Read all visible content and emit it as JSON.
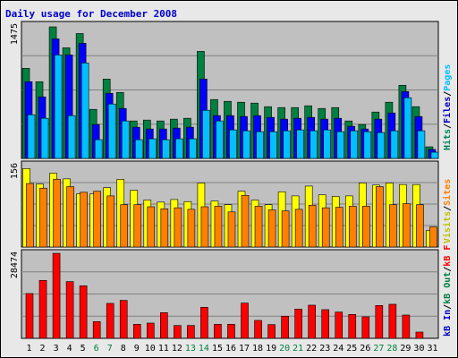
{
  "title": "Daily usage for December 2008",
  "colors": {
    "hits": "#008040",
    "files": "#0000ff",
    "pages": "#00c0ff",
    "visits": "#ffff00",
    "sites": "#ff8000",
    "kbin": "#0000ff",
    "kbout": "#008040",
    "kbf": "#ff0000",
    "background": "#c0c0c0",
    "weekend_label": "#008040",
    "weekday_label": "#000000"
  },
  "legends": {
    "top": [
      {
        "text": "Hits",
        "color": "#00805c"
      },
      {
        "text": "/",
        "color": "#000000"
      },
      {
        "text": "Files",
        "color": "#0000c0"
      },
      {
        "text": "/",
        "color": "#000000"
      },
      {
        "text": "Pages",
        "color": "#00c0ff"
      }
    ],
    "middle": [
      {
        "text": "Visits",
        "color": "#c0c000"
      },
      {
        "text": "/",
        "color": "#000000"
      },
      {
        "text": "Sites",
        "color": "#ff8000"
      }
    ],
    "bottom": [
      {
        "text": "kB In",
        "color": "#0000c0"
      },
      {
        "text": "/",
        "color": "#000000"
      },
      {
        "text": "kB Out",
        "color": "#008040"
      },
      {
        "text": "/",
        "color": "#000000"
      },
      {
        "text": "kB F",
        "color": "#ff0000"
      }
    ]
  },
  "chart_data": {
    "type": "bar",
    "title": "Daily usage for December 2008",
    "categories": [
      "1",
      "2",
      "3",
      "4",
      "5",
      "6",
      "7",
      "8",
      "9",
      "10",
      "11",
      "12",
      "13",
      "14",
      "15",
      "16",
      "17",
      "18",
      "19",
      "20",
      "21",
      "22",
      "23",
      "24",
      "25",
      "26",
      "27",
      "28",
      "29",
      "30",
      "31"
    ],
    "weekend_days": [
      6,
      7,
      13,
      14,
      20,
      21,
      27,
      28
    ],
    "panels": [
      {
        "name": "hits-files-pages",
        "ymax": 1475,
        "ymax_label": "1475",
        "series": [
          {
            "name": "Hits",
            "values": [
              1010,
              860,
              1475,
              1240,
              1400,
              550,
              890,
              740,
              420,
              430,
              420,
              440,
              450,
              1200,
              660,
              640,
              630,
              620,
              580,
              570,
              570,
              590,
              560,
              570,
              420,
              380,
              520,
              630,
              820,
              580,
              130
            ]
          },
          {
            "name": "Files",
            "values": [
              860,
              690,
              1340,
              1160,
              1290,
              380,
              730,
              560,
              350,
              330,
              330,
              340,
              350,
              890,
              480,
              480,
              470,
              480,
              460,
              440,
              450,
              460,
              440,
              450,
              360,
              330,
              440,
              510,
              750,
              470,
              100
            ]
          },
          {
            "name": "Pages",
            "values": [
              490,
              450,
              1160,
              480,
              1070,
              210,
              610,
              420,
              210,
              220,
              210,
              220,
              220,
              540,
              420,
              320,
              310,
              300,
              300,
              310,
              320,
              310,
              320,
              300,
              310,
              300,
              290,
              310,
              680,
              310,
              70
            ]
          }
        ]
      },
      {
        "name": "visits-sites",
        "ymax": 156,
        "ymax_label": "156",
        "series": [
          {
            "name": "Visits",
            "values": [
              152,
              122,
              143,
              132,
              103,
              103,
              115,
              131,
              110,
              91,
              87,
              92,
              88,
              124,
              89,
              82,
              108,
              91,
              82,
              107,
              99,
              118,
              101,
              98,
              99,
              124,
              120,
              124,
              121,
              121,
              32
            ]
          },
          {
            "name": "Sites",
            "values": [
              123,
              114,
              131,
              117,
              106,
              108,
              99,
              82,
              82,
              78,
              74,
              76,
              73,
              78,
              79,
              68,
              100,
              79,
              72,
              70,
              73,
              81,
              76,
              77,
              79,
              79,
              117,
              82,
              84,
              82,
              39
            ]
          }
        ]
      },
      {
        "name": "kb-in-out-f",
        "ymax": 28474,
        "ymax_label": "28474",
        "series": [
          {
            "name": "kB In",
            "values": [
              0,
              0,
              0,
              0,
              0,
              0,
              0,
              0,
              0,
              0,
              0,
              0,
              0,
              0,
              0,
              0,
              0,
              0,
              0,
              0,
              0,
              0,
              0,
              0,
              0,
              0,
              0,
              0,
              0,
              0,
              0
            ]
          },
          {
            "name": "kB Out",
            "values": [
              0,
              0,
              0,
              0,
              0,
              0,
              0,
              0,
              0,
              0,
              0,
              0,
              0,
              0,
              0,
              0,
              0,
              0,
              0,
              0,
              0,
              0,
              0,
              0,
              0,
              0,
              0,
              0,
              0,
              0,
              0
            ]
          },
          {
            "name": "kB F",
            "values": [
              15000,
              19400,
              28474,
              19000,
              17600,
              5600,
              11700,
              12700,
              4700,
              5100,
              8600,
              4300,
              4300,
              10400,
              4700,
              4700,
              11800,
              6000,
              4600,
              7400,
              9800,
              11100,
              9600,
              8800,
              8000,
              7200,
              11000,
              11400,
              7800,
              2100,
              0
            ]
          }
        ]
      }
    ],
    "grid": true,
    "legend": "right (vertical)"
  }
}
